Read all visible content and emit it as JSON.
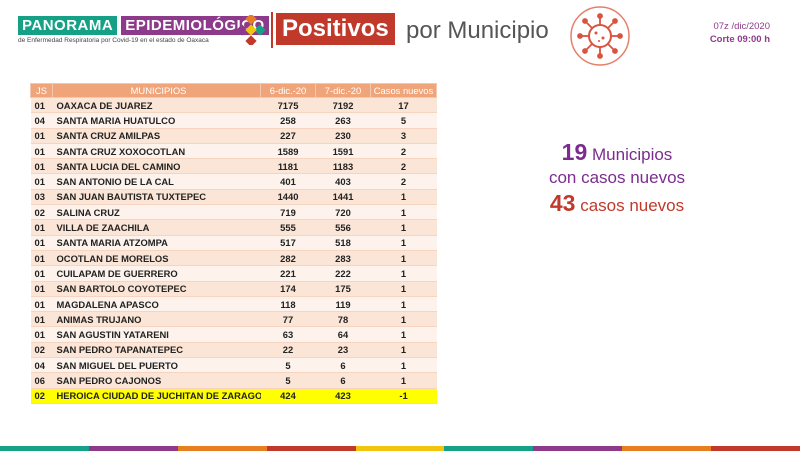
{
  "header": {
    "brand_word1": "PANORAMA",
    "brand_word2": "EPIDEMIOLÓGICO",
    "brand_subtitle": "de Enfermedad Respiratoria por Covid-19 en el estado de Oaxaca",
    "title_box": "Positivos",
    "title_rest": "por Municipio",
    "date": "07z /dic/2020",
    "cutoff": "Corte 09:00 h"
  },
  "table": {
    "headers": [
      "JS",
      "MUNICIPIOS",
      "6-dic.-20",
      "7-dic.-20",
      "Casos nuevos"
    ],
    "rows": [
      [
        "01",
        "OAXACA DE JUAREZ",
        "7175",
        "7192",
        "17"
      ],
      [
        "04",
        "SANTA MARIA HUATULCO",
        "258",
        "263",
        "5"
      ],
      [
        "01",
        "SANTA CRUZ AMILPAS",
        "227",
        "230",
        "3"
      ],
      [
        "01",
        "SANTA CRUZ XOXOCOTLAN",
        "1589",
        "1591",
        "2"
      ],
      [
        "01",
        "SANTA LUCIA DEL CAMINO",
        "1181",
        "1183",
        "2"
      ],
      [
        "01",
        "SAN ANTONIO DE LA CAL",
        "401",
        "403",
        "2"
      ],
      [
        "03",
        "SAN JUAN BAUTISTA TUXTEPEC",
        "1440",
        "1441",
        "1"
      ],
      [
        "02",
        "SALINA CRUZ",
        "719",
        "720",
        "1"
      ],
      [
        "01",
        "VILLA DE ZAACHILA",
        "555",
        "556",
        "1"
      ],
      [
        "01",
        "SANTA MARIA ATZOMPA",
        "517",
        "518",
        "1"
      ],
      [
        "01",
        "OCOTLAN DE MORELOS",
        "282",
        "283",
        "1"
      ],
      [
        "01",
        "CUILAPAM DE GUERRERO",
        "221",
        "222",
        "1"
      ],
      [
        "01",
        "SAN BARTOLO COYOTEPEC",
        "174",
        "175",
        "1"
      ],
      [
        "01",
        "MAGDALENA APASCO",
        "118",
        "119",
        "1"
      ],
      [
        "01",
        "ANIMAS TRUJANO",
        "77",
        "78",
        "1"
      ],
      [
        "01",
        "SAN AGUSTIN YATARENI",
        "63",
        "64",
        "1"
      ],
      [
        "02",
        "SAN PEDRO TAPANATEPEC",
        "22",
        "23",
        "1"
      ],
      [
        "04",
        "SAN MIGUEL DEL PUERTO",
        "5",
        "6",
        "1"
      ],
      [
        "06",
        "SAN PEDRO CAJONOS",
        "5",
        "6",
        "1"
      ],
      [
        "02",
        "HEROICA CIUDAD DE JUCHITAN DE ZARAGOZA",
        "424",
        "423",
        "-1"
      ]
    ],
    "highlight_row": 19,
    "highlight_color": "#ffff00"
  },
  "summary": {
    "municipios_count": "19",
    "municipios_label": "Municipios",
    "line2": "con casos nuevos",
    "casos_count": "43",
    "casos_label": "casos nuevos"
  },
  "colors": {
    "teal": "#16a085",
    "purple": "#8e3a8a",
    "red": "#c0392b",
    "header_orange": "#f0a47a"
  },
  "icons": {
    "logo": "colored-x-logo-icon",
    "virus": "coronavirus-icon"
  }
}
